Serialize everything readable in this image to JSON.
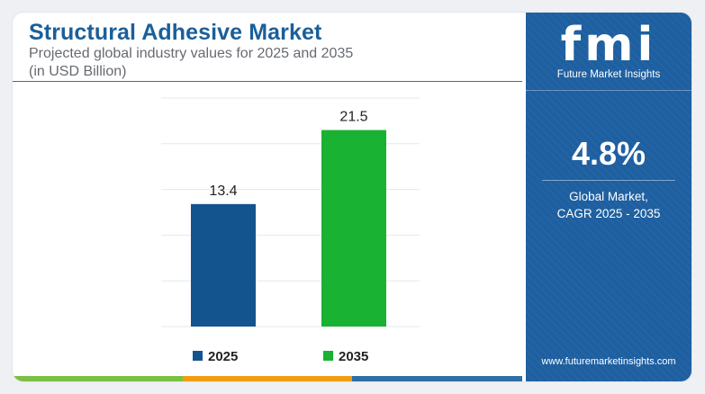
{
  "header": {
    "title": "Structural Adhesive Market",
    "subtitle": "Projected global industry values for 2025 and 2035",
    "unit": "(in USD Billion)"
  },
  "chart_data": {
    "type": "bar",
    "categories": [
      "2025",
      "2035"
    ],
    "values": [
      13.4,
      21.5
    ],
    "value_labels": [
      "13.4",
      "21.5"
    ],
    "colors": [
      "#13548f",
      "#1ab232"
    ],
    "ylim": [
      0,
      25
    ],
    "grid": true,
    "legend": [
      "2025",
      "2035"
    ],
    "legend_placement": "bottom"
  },
  "side_panel": {
    "logo": "fmi",
    "logo_subtitle": "Future Market Insights",
    "cagr_value": "4.8%",
    "cagr_label_line1": "Global Market,",
    "cagr_label_line2": "CAGR 2025 - 2035",
    "website": "www.futuremarketinsights.com"
  },
  "bottom_bar_colors": [
    "#7bc043",
    "#f39c12",
    "#2f6fa6"
  ]
}
